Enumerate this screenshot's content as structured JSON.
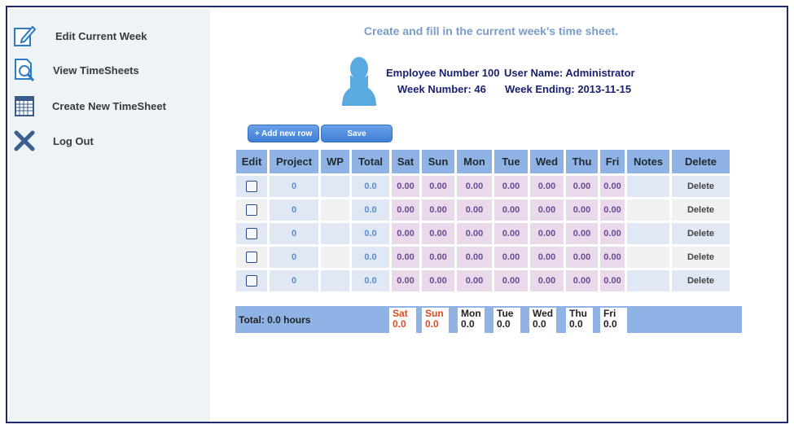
{
  "sidebar": {
    "items": [
      {
        "label": "Edit Current Week",
        "icon": "edit-icon"
      },
      {
        "label": "View TimeSheets",
        "icon": "search-document-icon"
      },
      {
        "label": "Create New TimeSheet",
        "icon": "calendar-icon"
      },
      {
        "label": "Log Out",
        "icon": "close-icon"
      }
    ]
  },
  "header": {
    "subtitle": "Create and fill in the current week's time sheet.",
    "employee_number": "Employee Number 100",
    "user_name": "User Name: Administrator",
    "week_number": "Week Number: 46",
    "week_ending": "Week Ending: 2013-11-15"
  },
  "toolbar": {
    "add_row_label": "+ Add new row",
    "save_label": "Save"
  },
  "table": {
    "columns": [
      "Edit",
      "Project",
      "WP",
      "Total",
      "Sat",
      "Sun",
      "Mon",
      "Tue",
      "Wed",
      "Thu",
      "Fri",
      "Notes",
      "Delete"
    ],
    "rows": [
      {
        "project": "0",
        "wp": "",
        "total": "0.0",
        "days": [
          "0.00",
          "0.00",
          "0.00",
          "0.00",
          "0.00",
          "0.00",
          "0.00"
        ],
        "notes": "",
        "delete": "Delete"
      },
      {
        "project": "0",
        "wp": "",
        "total": "0.0",
        "days": [
          "0.00",
          "0.00",
          "0.00",
          "0.00",
          "0.00",
          "0.00",
          "0.00"
        ],
        "notes": "",
        "delete": "Delete"
      },
      {
        "project": "0",
        "wp": "",
        "total": "0.0",
        "days": [
          "0.00",
          "0.00",
          "0.00",
          "0.00",
          "0.00",
          "0.00",
          "0.00"
        ],
        "notes": "",
        "delete": "Delete"
      },
      {
        "project": "0",
        "wp": "",
        "total": "0.0",
        "days": [
          "0.00",
          "0.00",
          "0.00",
          "0.00",
          "0.00",
          "0.00",
          "0.00"
        ],
        "notes": "",
        "delete": "Delete"
      },
      {
        "project": "0",
        "wp": "",
        "total": "0.0",
        "days": [
          "0.00",
          "0.00",
          "0.00",
          "0.00",
          "0.00",
          "0.00",
          "0.00"
        ],
        "notes": "",
        "delete": "Delete"
      }
    ]
  },
  "totals": {
    "label": "Total: 0.0 hours",
    "days": [
      {
        "day": "Sat",
        "value": "0.0"
      },
      {
        "day": "Sun",
        "value": "0.0"
      },
      {
        "day": "Mon",
        "value": "0.0"
      },
      {
        "day": "Tue",
        "value": "0.0"
      },
      {
        "day": "Wed",
        "value": "0.0"
      },
      {
        "day": "Thu",
        "value": "0.0"
      },
      {
        "day": "Fri",
        "value": "0.0"
      }
    ]
  },
  "colors": {
    "accent": "#3f7fd6",
    "header_blue": "#8fb3e4",
    "weekend_red": "#e04a1c",
    "text_navy": "#1a2270"
  }
}
